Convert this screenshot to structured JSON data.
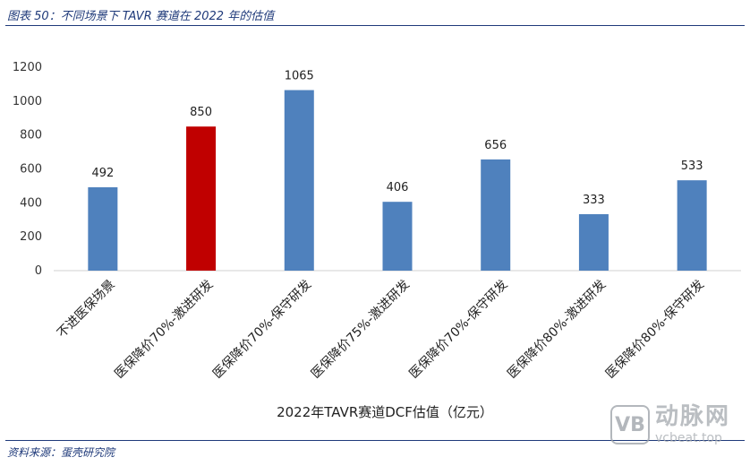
{
  "header": {
    "figure_title": "图表 50：不同场景下 TAVR 赛道在 2022 年的估值"
  },
  "footer": {
    "source": "资料来源：蛋壳研究院"
  },
  "watermark": {
    "logo_text": "VB",
    "brand_cn": "动脉网",
    "brand_en": "vcbeat.top"
  },
  "chart_data": {
    "type": "bar",
    "title": "",
    "xlabel": "2022年TAVR赛道DCF估值（亿元）",
    "ylabel": "",
    "ylim": [
      0,
      1200
    ],
    "yticks": [
      0,
      200,
      400,
      600,
      800,
      1000,
      1200
    ],
    "grid": false,
    "legend": "none",
    "categories": [
      "不进医保场景",
      "医保降价70%-激进研发",
      "医保降价70%-保守研发",
      "医保降价75%-激进研发",
      "医保降价70%-保守研发",
      "医保降价80%-激进研发",
      "医保降价80%-保守研发"
    ],
    "values": [
      492,
      850,
      1065,
      406,
      656,
      333,
      533
    ],
    "colors": [
      "#4f81bd",
      "#c00000",
      "#4f81bd",
      "#4f81bd",
      "#4f81bd",
      "#4f81bd",
      "#4f81bd"
    ]
  }
}
